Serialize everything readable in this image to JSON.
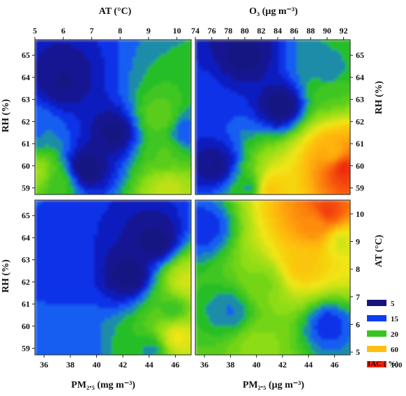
{
  "chart_data": [
    {
      "type": "heatmap",
      "panel": "top-left",
      "xlabel": "AT (°C)",
      "ylabel": "RH (%)",
      "x_ticks": [
        5,
        6,
        7,
        8,
        9,
        10
      ],
      "y_ticks": [
        59,
        60,
        61,
        62,
        63,
        64,
        65
      ],
      "xlim": [
        5,
        10.5
      ],
      "ylim": [
        58.7,
        65.7
      ],
      "blobs": [
        {
          "x": 9.4,
          "y": 62.2,
          "v": 26
        },
        {
          "x": 9.6,
          "y": 60.6,
          "v": 24
        },
        {
          "x": 5.1,
          "y": 59.7,
          "v": 32
        },
        {
          "x": 5.8,
          "y": 59.2,
          "v": 22
        },
        {
          "x": 9.7,
          "y": 58.9,
          "v": 38
        },
        {
          "x": 6.8,
          "y": 59.9,
          "v": 4
        },
        {
          "x": 7.8,
          "y": 61.5,
          "v": 5
        },
        {
          "x": 6.0,
          "y": 63.8,
          "v": 6
        },
        {
          "x": 5.0,
          "y": 61.5,
          "v": 16
        },
        {
          "x": 10.3,
          "y": 61.5,
          "v": 14
        }
      ]
    },
    {
      "type": "heatmap",
      "panel": "top-right",
      "xlabel": "O3 (µg m-3)",
      "ylabel": "RH (%)",
      "x_ticks": [
        74,
        76,
        78,
        80,
        82,
        84,
        86,
        88,
        90,
        92
      ],
      "y_ticks": [
        59,
        60,
        61,
        62,
        63,
        64,
        65
      ],
      "xlim": [
        74,
        92.8
      ],
      "ylim": [
        58.7,
        65.7
      ],
      "blobs": [
        {
          "x": 92.0,
          "y": 59.9,
          "v": 95
        },
        {
          "x": 90.8,
          "y": 60.6,
          "v": 60
        },
        {
          "x": 90.5,
          "y": 63.5,
          "v": 24
        },
        {
          "x": 90.3,
          "y": 64.1,
          "v": 16
        },
        {
          "x": 83.2,
          "y": 58.9,
          "v": 55
        },
        {
          "x": 80.5,
          "y": 59.0,
          "v": 18
        },
        {
          "x": 76.5,
          "y": 60.0,
          "v": 6
        },
        {
          "x": 84.5,
          "y": 62.7,
          "v": 4
        },
        {
          "x": 80.0,
          "y": 65.0,
          "v": 5
        },
        {
          "x": 75.0,
          "y": 63.0,
          "v": 12
        }
      ]
    },
    {
      "type": "heatmap",
      "panel": "bottom-left",
      "xlabel": "PM2.5 (mg m-3)",
      "ylabel": "RH (%)",
      "x_ticks": [
        36,
        38,
        40,
        42,
        44,
        46
      ],
      "y_ticks": [
        59,
        60,
        61,
        62,
        63,
        64,
        65
      ],
      "xlim": [
        35.3,
        47.2
      ],
      "ylim": [
        58.7,
        65.7
      ],
      "blobs": [
        {
          "x": 46.8,
          "y": 62.0,
          "v": 40
        },
        {
          "x": 46.2,
          "y": 59.5,
          "v": 45
        },
        {
          "x": 45.8,
          "y": 60.8,
          "v": 22
        },
        {
          "x": 44.2,
          "y": 58.9,
          "v": 18
        },
        {
          "x": 38.0,
          "y": 58.9,
          "v": 14
        },
        {
          "x": 42.5,
          "y": 62.3,
          "v": 4
        },
        {
          "x": 44.5,
          "y": 63.8,
          "v": 5
        },
        {
          "x": 37.5,
          "y": 62.5,
          "v": 13
        }
      ]
    },
    {
      "type": "heatmap",
      "panel": "bottom-right",
      "xlabel": "PM2.5 (µg m-3)",
      "ylabel": "AT (°C)",
      "x_ticks": [
        36,
        38,
        40,
        42,
        44,
        46
      ],
      "y_ticks": [
        5,
        6,
        7,
        8,
        9,
        10
      ],
      "xlim": [
        35.3,
        47.2
      ],
      "ylim": [
        4.9,
        10.5
      ],
      "blobs": [
        {
          "x": 45.5,
          "y": 10.1,
          "v": 90
        },
        {
          "x": 44.5,
          "y": 9.6,
          "v": 70
        },
        {
          "x": 43.5,
          "y": 8.2,
          "v": 55
        },
        {
          "x": 46.5,
          "y": 9.0,
          "v": 40
        },
        {
          "x": 40.5,
          "y": 7.5,
          "v": 28
        },
        {
          "x": 40.0,
          "y": 5.2,
          "v": 30
        },
        {
          "x": 38.0,
          "y": 6.5,
          "v": 16
        },
        {
          "x": 45.5,
          "y": 6.0,
          "v": 12
        },
        {
          "x": 36.0,
          "y": 9.5,
          "v": 12
        }
      ]
    }
  ],
  "legend": {
    "title": "IAC ( %)",
    "items": [
      {
        "label": "5",
        "color": "#14147a"
      },
      {
        "label": "15",
        "color": "#0a3ef2"
      },
      {
        "label": "20",
        "color": "#35c51f"
      },
      {
        "label": "60",
        "color": "#ffc00f"
      },
      {
        "label": "100",
        "color": "#f21f0a"
      }
    ]
  },
  "labels": {
    "top_x": "AT (°C)",
    "top_x2": "O₃ (µg m⁻³)",
    "left_y1": "RH (%)",
    "left_y2": "RH (%)",
    "right_y1": "RH (%)",
    "right_y2": "AT (°C)",
    "bottom_x1": "PM₂.₅ (mg m⁻³)",
    "bottom_x2": "PM₂.₅ (µg m⁻³)"
  }
}
